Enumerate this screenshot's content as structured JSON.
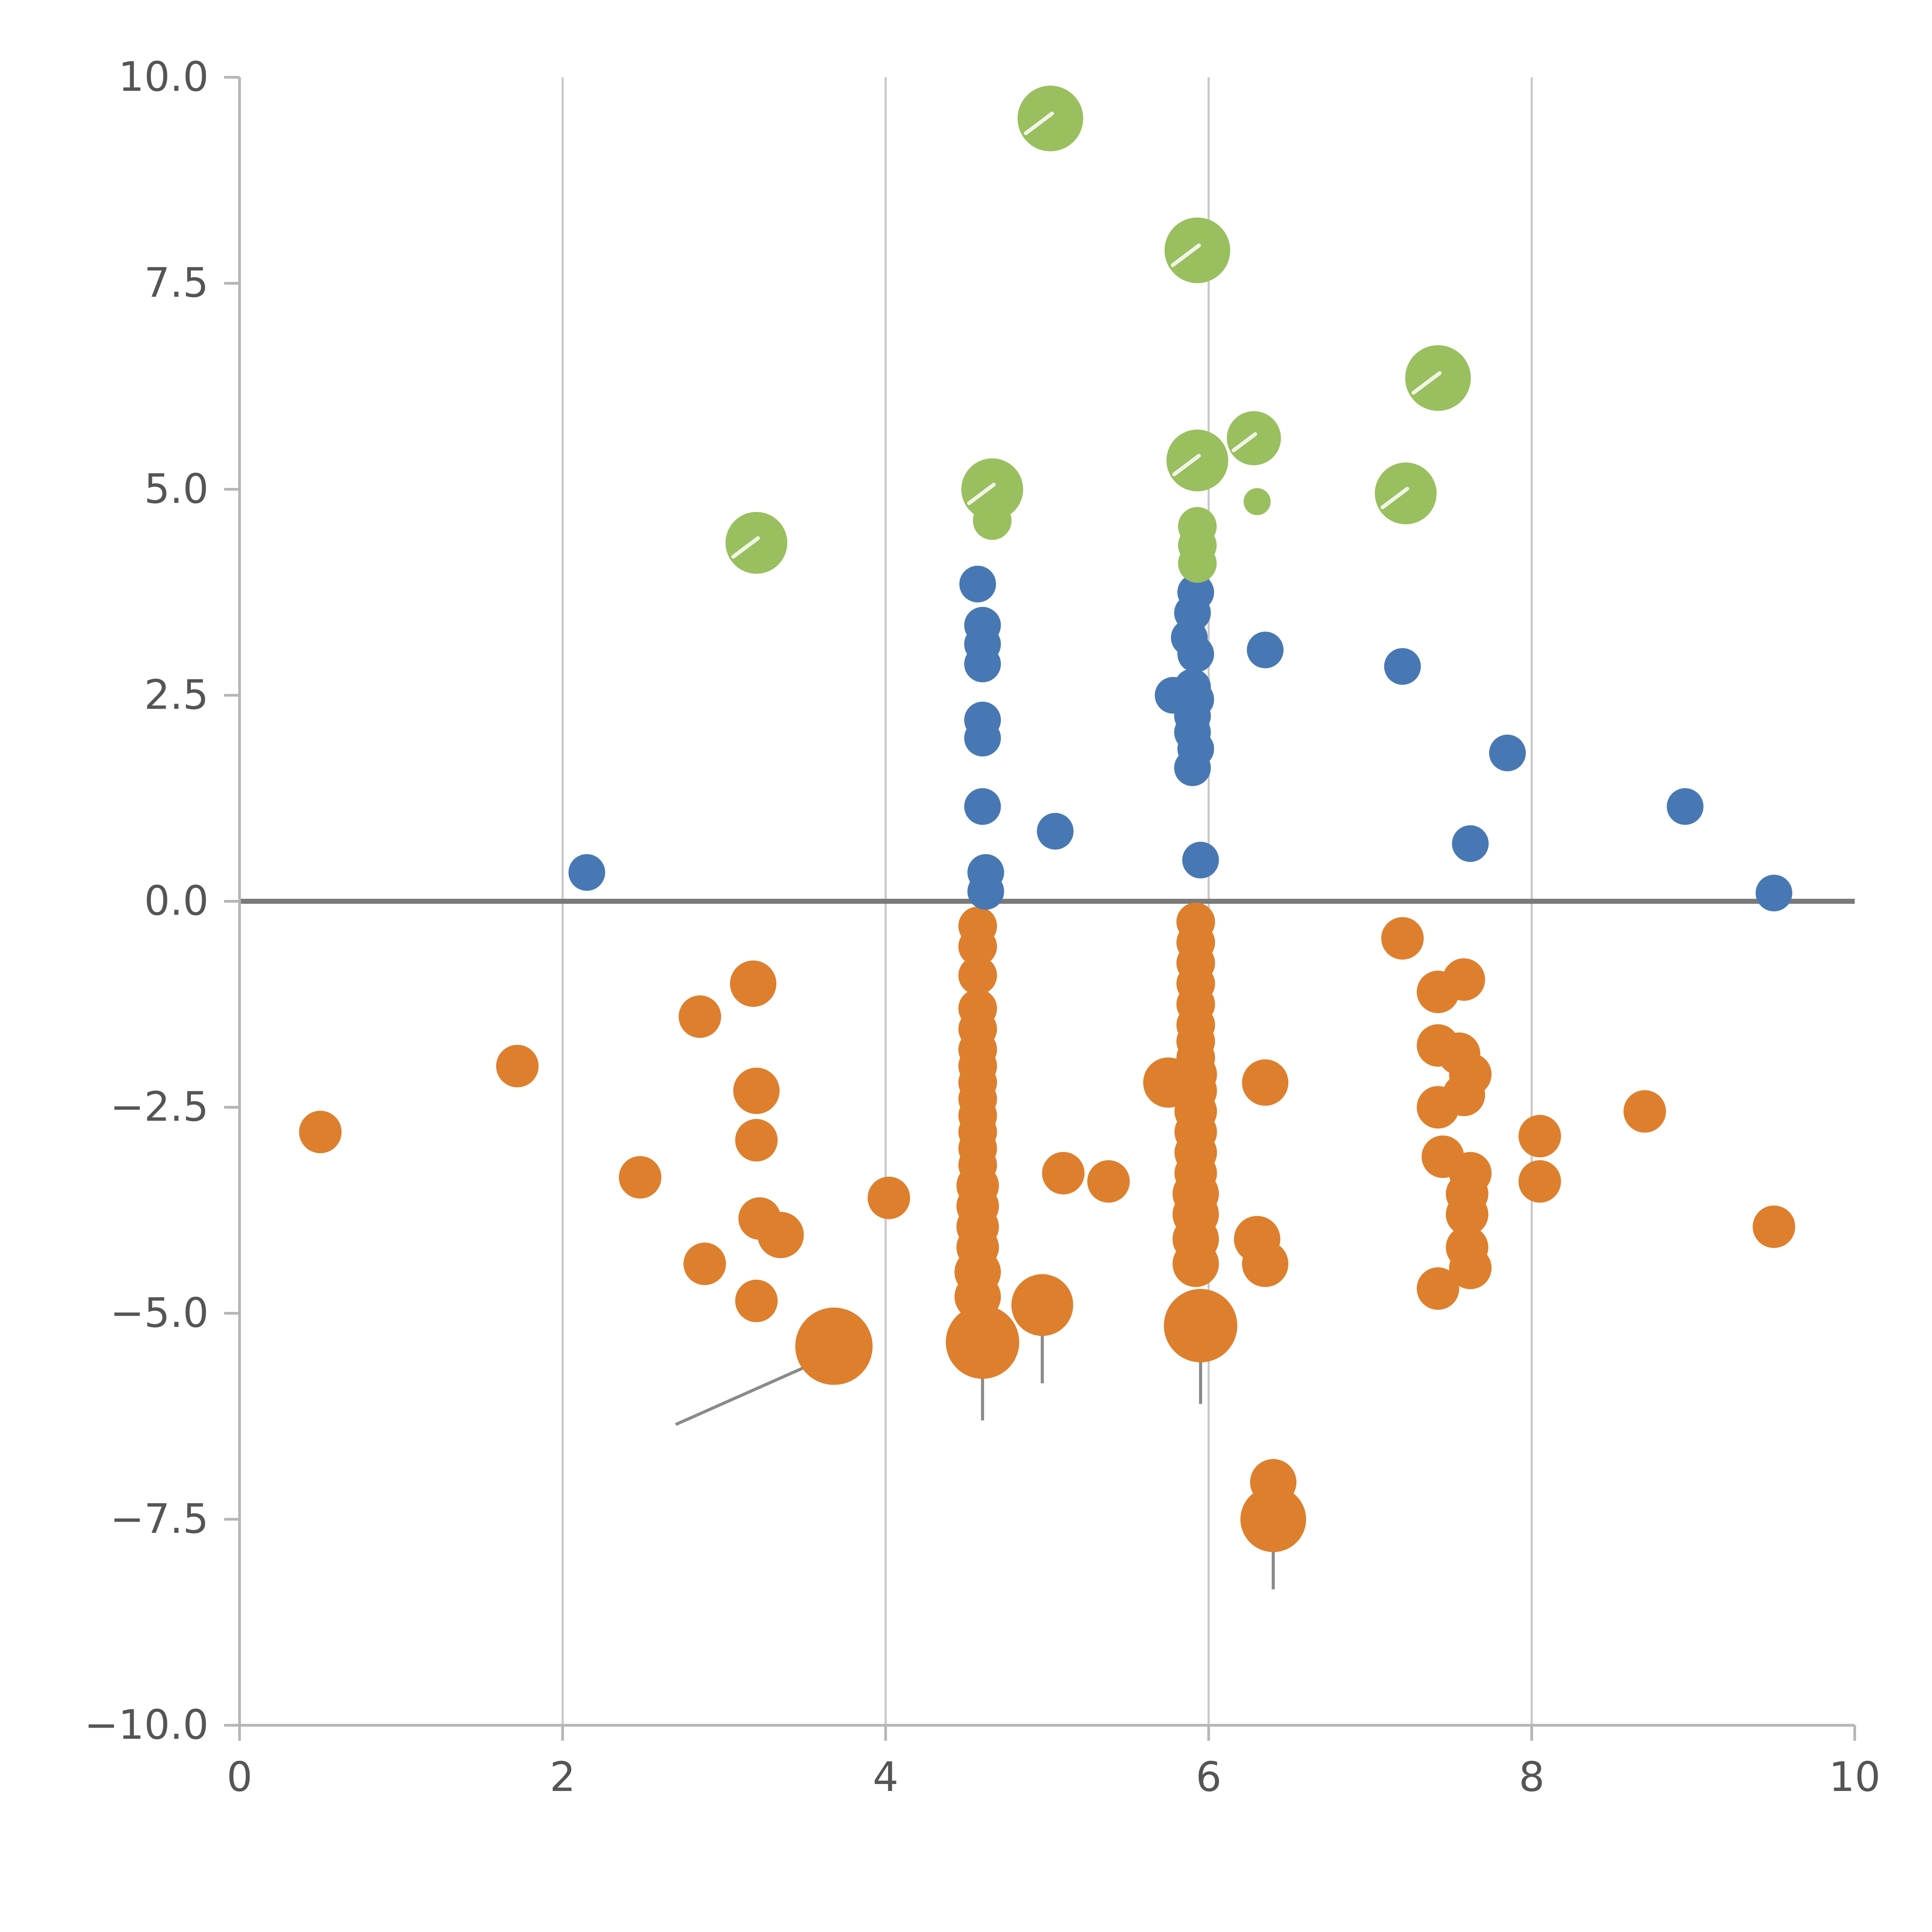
{
  "chart_data": {
    "type": "scatter",
    "title": "",
    "xlabel": "",
    "ylabel": "",
    "xlim": [
      0,
      10
    ],
    "ylim": [
      -10,
      10
    ],
    "grid": {
      "vertical_x": [
        2,
        4,
        6,
        8
      ],
      "horizontal_y": []
    },
    "zero_line_y": 0,
    "legend": "none",
    "x_ticks": {
      "values": [
        0,
        2,
        4,
        6,
        8,
        10
      ],
      "labels": [
        "0",
        "2",
        "4",
        "6",
        "8",
        "10"
      ]
    },
    "y_ticks": {
      "values": [
        10,
        7.5,
        5,
        2.5,
        0,
        -2.5,
        -5,
        -7.5,
        -10
      ],
      "labels": [
        "10.0",
        "7.5",
        "5.0",
        "2.5",
        "0.0",
        "−2.5",
        "−5.0",
        "−7.5",
        "−10.0"
      ]
    },
    "colors": {
      "green": "#9abf5f",
      "blue": "#4878b4",
      "orange": "#de7f2d",
      "zero_line": "#7a7a7a",
      "gridline": "#c8c8c8",
      "spine": "#b5b5b5",
      "tick_label": "#555555",
      "segment": "#8a8a8a"
    },
    "series": [
      {
        "name": "orange",
        "color": "#de7f2d",
        "r_default": 11,
        "points": [
          [
            0.5,
            -2.8,
            11
          ],
          [
            1.72,
            -2.0,
            11
          ],
          [
            2.48,
            -3.35,
            11
          ],
          [
            2.85,
            -1.4,
            11
          ],
          [
            2.88,
            -4.4,
            11
          ],
          [
            3.18,
            -1.0,
            12
          ],
          [
            3.2,
            -2.3,
            12
          ],
          [
            3.2,
            -2.9,
            11
          ],
          [
            3.22,
            -3.85,
            11
          ],
          [
            3.35,
            -4.05,
            12
          ],
          [
            3.2,
            -4.85,
            11
          ],
          [
            3.68,
            -5.4,
            20
          ],
          [
            4.02,
            -3.6,
            11
          ],
          [
            4.57,
            -0.3,
            10
          ],
          [
            4.57,
            -0.55,
            10
          ],
          [
            4.57,
            -0.9,
            10
          ],
          [
            4.57,
            -1.3,
            10
          ],
          [
            4.57,
            -1.55,
            10
          ],
          [
            4.57,
            -1.8,
            10
          ],
          [
            4.57,
            -2.0,
            10
          ],
          [
            4.57,
            -2.2,
            10
          ],
          [
            4.57,
            -2.4,
            10
          ],
          [
            4.57,
            -2.6,
            10
          ],
          [
            4.57,
            -2.8,
            10
          ],
          [
            4.57,
            -3.0,
            10
          ],
          [
            4.57,
            -3.2,
            10
          ],
          [
            4.57,
            -3.45,
            11
          ],
          [
            4.57,
            -3.7,
            11
          ],
          [
            4.57,
            -3.95,
            11
          ],
          [
            4.57,
            -4.2,
            11
          ],
          [
            4.57,
            -4.5,
            12
          ],
          [
            4.57,
            -4.8,
            12
          ],
          [
            4.6,
            -5.35,
            19
          ],
          [
            4.97,
            -4.9,
            16
          ],
          [
            5.1,
            -3.3,
            11
          ],
          [
            5.38,
            -3.4,
            11
          ],
          [
            5.75,
            -2.2,
            13
          ],
          [
            5.92,
            -0.25,
            10
          ],
          [
            5.92,
            -0.5,
            10
          ],
          [
            5.92,
            -0.75,
            10
          ],
          [
            5.92,
            -1.0,
            10
          ],
          [
            5.92,
            -1.25,
            10
          ],
          [
            5.92,
            -1.5,
            10
          ],
          [
            5.92,
            -1.7,
            10
          ],
          [
            5.92,
            -1.9,
            10
          ],
          [
            5.92,
            -2.1,
            11
          ],
          [
            5.92,
            -2.3,
            11
          ],
          [
            5.92,
            -2.55,
            11
          ],
          [
            5.92,
            -2.8,
            11
          ],
          [
            5.92,
            -3.05,
            11
          ],
          [
            5.92,
            -3.3,
            11
          ],
          [
            5.92,
            -3.55,
            12
          ],
          [
            5.92,
            -3.8,
            12
          ],
          [
            5.92,
            -4.1,
            12
          ],
          [
            5.92,
            -4.4,
            12
          ],
          [
            5.95,
            -5.15,
            19
          ],
          [
            6.35,
            -2.2,
            12
          ],
          [
            6.3,
            -4.1,
            12
          ],
          [
            6.35,
            -4.4,
            12
          ],
          [
            6.4,
            -7.05,
            12
          ],
          [
            6.4,
            -7.5,
            17
          ],
          [
            7.2,
            -0.45,
            11
          ],
          [
            7.42,
            -1.1,
            11
          ],
          [
            7.58,
            -0.95,
            11
          ],
          [
            7.42,
            -1.75,
            11
          ],
          [
            7.55,
            -1.85,
            11
          ],
          [
            7.62,
            -2.1,
            11
          ],
          [
            7.42,
            -2.5,
            11
          ],
          [
            7.58,
            -2.35,
            11
          ],
          [
            7.45,
            -3.1,
            11
          ],
          [
            7.62,
            -3.3,
            11
          ],
          [
            7.6,
            -3.55,
            11
          ],
          [
            7.6,
            -3.8,
            11
          ],
          [
            7.6,
            -4.2,
            11
          ],
          [
            7.62,
            -4.45,
            11
          ],
          [
            7.42,
            -4.7,
            11
          ],
          [
            8.05,
            -2.85,
            11
          ],
          [
            8.05,
            -3.4,
            11
          ],
          [
            8.7,
            -2.55,
            11
          ],
          [
            9.5,
            -3.95,
            11
          ]
        ]
      },
      {
        "name": "blue",
        "color": "#4878b4",
        "r_default": 9.5,
        "points": [
          [
            2.15,
            0.35
          ],
          [
            4.57,
            3.85
          ],
          [
            4.6,
            3.35
          ],
          [
            4.6,
            3.12
          ],
          [
            4.6,
            2.88
          ],
          [
            4.6,
            2.2
          ],
          [
            4.6,
            1.98
          ],
          [
            4.6,
            1.15
          ],
          [
            4.62,
            0.35
          ],
          [
            4.62,
            0.12
          ],
          [
            5.05,
            0.85
          ],
          [
            5.78,
            2.5
          ],
          [
            5.92,
            3.75
          ],
          [
            5.9,
            3.5
          ],
          [
            5.88,
            3.2
          ],
          [
            5.92,
            3.0
          ],
          [
            5.9,
            2.6
          ],
          [
            5.92,
            2.45
          ],
          [
            5.9,
            2.25
          ],
          [
            5.9,
            2.05
          ],
          [
            5.92,
            1.85
          ],
          [
            5.9,
            1.62
          ],
          [
            5.95,
            0.5
          ],
          [
            6.35,
            3.05
          ],
          [
            7.2,
            2.85
          ],
          [
            7.62,
            0.7
          ],
          [
            7.85,
            1.8
          ],
          [
            8.95,
            1.15
          ],
          [
            9.5,
            0.1
          ]
        ]
      },
      {
        "name": "green",
        "color": "#9abf5f",
        "r_default": 16,
        "points": [
          [
            5.02,
            9.5,
            17
          ],
          [
            5.93,
            7.9,
            17
          ],
          [
            7.42,
            6.35,
            17
          ],
          [
            4.66,
            5.0,
            16
          ],
          [
            5.93,
            5.35,
            16
          ],
          [
            6.28,
            5.62,
            14
          ],
          [
            7.22,
            4.95,
            16
          ],
          [
            3.2,
            4.35,
            16
          ],
          [
            6.3,
            4.85,
            7
          ],
          [
            4.66,
            4.62,
            10
          ],
          [
            5.93,
            4.55,
            10
          ],
          [
            5.93,
            4.32,
            10
          ],
          [
            5.93,
            4.1,
            10
          ]
        ]
      }
    ],
    "segments": [
      {
        "x1": 2.7,
        "y1": -6.35,
        "x2": 3.62,
        "y2": -5.55
      },
      {
        "x1": 4.6,
        "y1": -5.5,
        "x2": 4.6,
        "y2": -6.3
      },
      {
        "x1": 4.97,
        "y1": -5.05,
        "x2": 4.97,
        "y2": -5.85
      },
      {
        "x1": 5.95,
        "y1": -5.3,
        "x2": 5.95,
        "y2": -6.1
      },
      {
        "x1": 6.4,
        "y1": -7.6,
        "x2": 6.4,
        "y2": -8.35
      }
    ]
  }
}
